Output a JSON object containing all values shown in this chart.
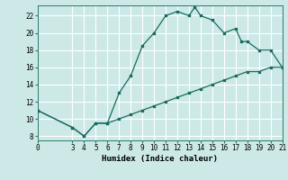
{
  "xlabel": "Humidex (Indice chaleur)",
  "ylabel": "",
  "background_color": "#cce9e7",
  "grid_color": "#ffffff",
  "line_color": "#1a6b5e",
  "marker_color": "#1a6b5e",
  "xlim": [
    0,
    21
  ],
  "ylim": [
    7.5,
    23.2
  ],
  "xticks": [
    0,
    3,
    4,
    5,
    6,
    7,
    8,
    9,
    10,
    11,
    12,
    13,
    14,
    15,
    16,
    17,
    18,
    19,
    20,
    21
  ],
  "yticks": [
    8,
    10,
    12,
    14,
    16,
    18,
    20,
    22
  ],
  "line1_x": [
    0,
    3,
    4,
    5,
    6,
    7,
    8,
    9,
    10,
    11,
    12,
    13,
    13.5,
    14,
    15,
    16,
    17,
    17.5,
    18,
    19,
    20,
    21
  ],
  "line1_y": [
    11,
    9,
    8,
    9.5,
    9.5,
    13,
    15,
    18.5,
    20,
    22,
    22.5,
    22,
    23,
    22,
    21.5,
    20,
    20.5,
    19,
    19,
    18,
    18,
    16
  ],
  "line2_x": [
    0,
    3,
    4,
    5,
    6,
    7,
    8,
    9,
    10,
    11,
    12,
    13,
    14,
    15,
    16,
    17,
    18,
    19,
    20,
    21
  ],
  "line2_y": [
    11,
    9,
    8,
    9.5,
    9.5,
    10,
    10.5,
    11,
    11.5,
    12,
    12.5,
    13,
    13.5,
    14,
    14.5,
    15,
    15.5,
    15.5,
    16,
    16
  ]
}
